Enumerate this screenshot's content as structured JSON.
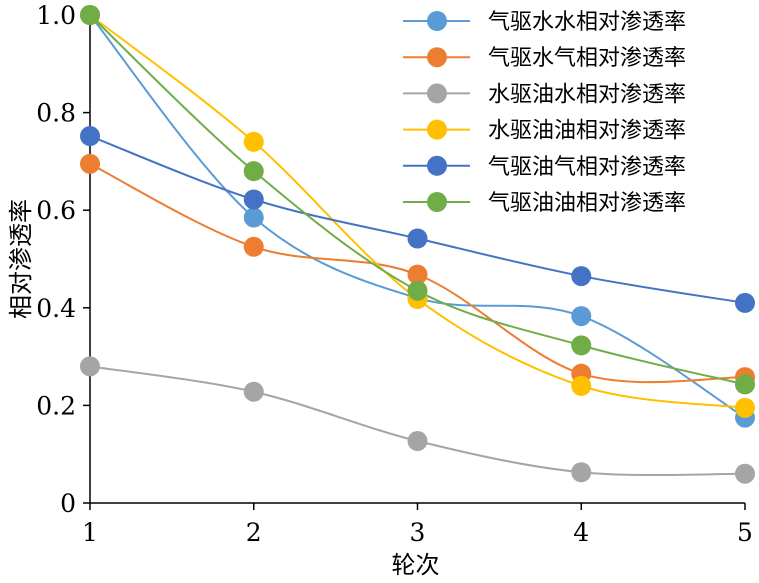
{
  "chart_data": {
    "type": "line",
    "xlabel": "轮次",
    "ylabel": "相对渗透率",
    "x": [
      1,
      2,
      3,
      4,
      5
    ],
    "xlim": [
      1,
      5
    ],
    "ylim": [
      0,
      1.0
    ],
    "xticks": [
      "1",
      "2",
      "3",
      "4",
      "5"
    ],
    "yticks": [
      "0",
      "0.2",
      "0.4",
      "0.6",
      "0.8",
      "1.0"
    ],
    "grid": false,
    "smooth": true,
    "legend_position": "top-right",
    "series": [
      {
        "name": "气驱水水相对渗透率",
        "color": "#5B9BD5",
        "values": [
          1.0,
          0.585,
          0.42,
          0.383,
          0.175
        ]
      },
      {
        "name": "气驱水气相对渗透率",
        "color": "#ED7D31",
        "values": [
          0.695,
          0.525,
          0.468,
          0.265,
          0.258
        ]
      },
      {
        "name": "水驱油水相对渗透率",
        "color": "#A5A5A5",
        "values": [
          0.28,
          0.228,
          0.127,
          0.063,
          0.06
        ]
      },
      {
        "name": "水驱油油相对渗透率",
        "color": "#FFC000",
        "values": [
          1.0,
          0.74,
          0.418,
          0.24,
          0.195
        ]
      },
      {
        "name": "气驱油气相对渗透率",
        "color": "#4472C4",
        "values": [
          0.752,
          0.622,
          0.542,
          0.465,
          0.41
        ]
      },
      {
        "name": "气驱油油相对渗透率",
        "color": "#70AD47",
        "values": [
          1.0,
          0.68,
          0.435,
          0.323,
          0.243
        ]
      }
    ]
  }
}
